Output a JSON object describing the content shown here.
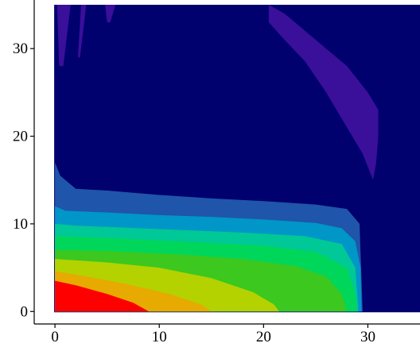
{
  "chart_data": {
    "type": "heatmap",
    "title": "",
    "xlabel": "",
    "ylabel": "",
    "xlim": [
      -1,
      35
    ],
    "ylim": [
      -0.7,
      35
    ],
    "x_ticks": [
      "0",
      "10",
      "20",
      "30"
    ],
    "y_ticks": [
      "0",
      "10",
      "20",
      "30"
    ],
    "grid": false,
    "legend": "none",
    "color_levels": [
      "#00007A",
      "#1F55AA",
      "#0096C8",
      "#00C896",
      "#00D75A",
      "#3CC81E",
      "#B4D200",
      "#E6AA00",
      "#F06400",
      "#FF0000"
    ],
    "background_color": "#00006E",
    "contours": [
      {
        "level": 1,
        "color": "#1F55AA",
        "points": [
          [
            0,
            17
          ],
          [
            0.5,
            15.5
          ],
          [
            2,
            14
          ],
          [
            5,
            13.8
          ],
          [
            10,
            13.3
          ],
          [
            15,
            12.9
          ],
          [
            20,
            12.6
          ],
          [
            25,
            12.2
          ],
          [
            28,
            11.7
          ],
          [
            29.2,
            10
          ],
          [
            29.5,
            0
          ],
          [
            0,
            0
          ]
        ]
      },
      {
        "level": 2,
        "color": "#0096C8",
        "points": [
          [
            0,
            12
          ],
          [
            1,
            11.5
          ],
          [
            5,
            11.3
          ],
          [
            10,
            11
          ],
          [
            15,
            10.8
          ],
          [
            20,
            10.5
          ],
          [
            25,
            10.1
          ],
          [
            27.5,
            9.5
          ],
          [
            28.8,
            8
          ],
          [
            29.3,
            5
          ],
          [
            29.4,
            0
          ],
          [
            0,
            0
          ]
        ]
      },
      {
        "level": 3,
        "color": "#00C896",
        "points": [
          [
            0,
            10
          ],
          [
            2,
            9.8
          ],
          [
            10,
            9.4
          ],
          [
            18,
            9
          ],
          [
            24,
            8.6
          ],
          [
            27.5,
            7.7
          ],
          [
            28.8,
            5
          ],
          [
            29.1,
            0
          ],
          [
            0,
            0
          ]
        ]
      },
      {
        "level": 4,
        "color": "#00D75A",
        "points": [
          [
            0,
            8.6
          ],
          [
            5,
            8.4
          ],
          [
            12,
            8
          ],
          [
            20,
            7.5
          ],
          [
            25,
            6.8
          ],
          [
            28,
            5
          ],
          [
            28.8,
            2
          ],
          [
            28.9,
            0
          ],
          [
            0,
            0
          ]
        ]
      },
      {
        "level": 5,
        "color": "#3CC81E",
        "points": [
          [
            0,
            7
          ],
          [
            5,
            6.9
          ],
          [
            12,
            6.5
          ],
          [
            18,
            6
          ],
          [
            23,
            5.2
          ],
          [
            26,
            4
          ],
          [
            27.5,
            2
          ],
          [
            28,
            0
          ],
          [
            0,
            0
          ]
        ]
      },
      {
        "level": 6,
        "color": "#B4D200",
        "points": [
          [
            0,
            6
          ],
          [
            5,
            5.6
          ],
          [
            10,
            5
          ],
          [
            15,
            3.8
          ],
          [
            19,
            2.2
          ],
          [
            21,
            0.8
          ],
          [
            21.5,
            0
          ],
          [
            0,
            0
          ]
        ]
      },
      {
        "level": 7,
        "color": "#E6AA00",
        "points": [
          [
            0,
            4.6
          ],
          [
            3,
            4
          ],
          [
            7,
            3.1
          ],
          [
            11,
            2
          ],
          [
            14,
            0.8
          ],
          [
            15,
            0
          ],
          [
            0,
            0
          ]
        ]
      },
      {
        "level": 8,
        "color": "#FF0000",
        "points": [
          [
            0,
            3.5
          ],
          [
            2,
            3
          ],
          [
            5,
            2
          ],
          [
            7.5,
            1
          ],
          [
            9,
            0
          ],
          [
            0,
            0
          ]
        ]
      }
    ],
    "streaks": [
      {
        "color": "#3A0F9A",
        "points": [
          [
            0.2,
            35
          ],
          [
            1.5,
            35
          ],
          [
            0.8,
            28
          ],
          [
            0.4,
            28
          ]
        ]
      },
      {
        "color": "#3A0F9A",
        "points": [
          [
            2.5,
            35
          ],
          [
            3.0,
            35
          ],
          [
            2.4,
            29
          ],
          [
            2.2,
            29
          ]
        ]
      },
      {
        "color": "#3A0F9A",
        "points": [
          [
            4.8,
            35
          ],
          [
            5.8,
            35
          ],
          [
            5.3,
            33
          ],
          [
            5.0,
            33
          ]
        ]
      },
      {
        "color": "#3A0F9A",
        "points": [
          [
            20.5,
            35
          ],
          [
            22,
            34
          ],
          [
            25,
            31
          ],
          [
            28,
            28
          ],
          [
            30,
            25
          ],
          [
            31,
            23
          ],
          [
            31,
            20
          ],
          [
            30.8,
            17
          ],
          [
            30.5,
            15
          ],
          [
            29.5,
            18
          ],
          [
            28,
            21
          ],
          [
            26,
            25
          ],
          [
            24,
            28.5
          ],
          [
            22,
            31
          ],
          [
            20.5,
            33
          ]
        ]
      }
    ]
  }
}
